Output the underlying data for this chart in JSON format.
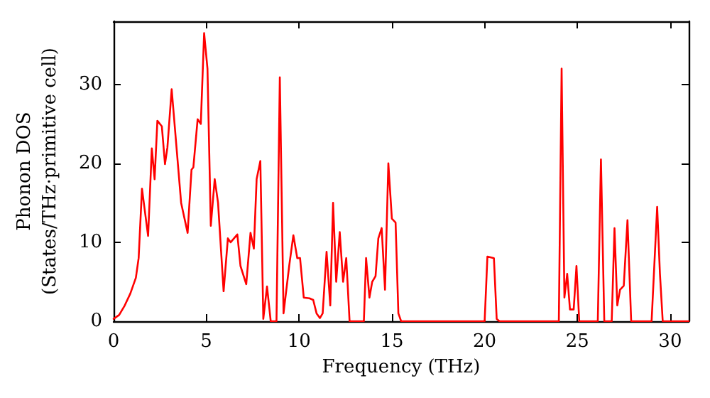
{
  "chart_data": {
    "type": "line",
    "xlabel": "Frequency (THz)",
    "ylabel": "Phonon DOS\n(States/THz·primitive cell)",
    "xlim": [
      0,
      31
    ],
    "ylim": [
      0,
      38
    ],
    "xticks": [
      0,
      5,
      10,
      15,
      20,
      25,
      30
    ],
    "yticks": [
      0,
      10,
      20,
      30
    ],
    "grid": false,
    "marker": "none",
    "line_style": "solid",
    "series": [
      {
        "color": "#ff0000",
        "x": [
          0,
          0.3,
          0.6,
          0.9,
          1.2,
          1.35,
          1.53,
          1.86,
          2.06,
          2.21,
          2.36,
          2.6,
          2.77,
          2.9,
          3.13,
          3.64,
          3.99,
          4.2,
          4.3,
          4.53,
          4.7,
          4.88,
          5.06,
          5.24,
          5.45,
          5.63,
          5.93,
          6.16,
          6.31,
          6.67,
          6.84,
          7.15,
          7.38,
          7.56,
          7.71,
          7.91,
          8.07,
          8.27,
          8.47,
          8.78,
          8.96,
          9.16,
          9.47,
          9.69,
          9.9,
          10.05,
          10.25,
          10.56,
          10.76,
          10.94,
          11.12,
          11.27,
          11.48,
          11.68,
          11.83,
          12.0,
          12.19,
          12.37,
          12.54,
          12.72,
          13.49,
          13.61,
          13.79,
          13.94,
          14.12,
          14.27,
          14.45,
          14.63,
          14.81,
          15.0,
          15.2,
          15.35,
          15.5,
          20.0,
          20.15,
          20.5,
          20.65,
          20.8,
          24.0,
          24.15,
          24.3,
          24.45,
          24.6,
          24.8,
          24.95,
          25.1,
          26.1,
          26.27,
          26.45,
          26.85,
          27.0,
          27.15,
          27.3,
          27.5,
          27.7,
          27.9,
          29.0,
          29.3,
          29.45,
          29.6,
          31
        ],
        "values": [
          0.3,
          0.8,
          2,
          3.5,
          5.5,
          8,
          16.8,
          10.8,
          21.9,
          18,
          25.4,
          24.7,
          19.9,
          22,
          29.4,
          15,
          11.2,
          19.2,
          19.5,
          25.6,
          25,
          36.5,
          32,
          12.1,
          18,
          15,
          3.8,
          10.5,
          10,
          11,
          7,
          4.7,
          11.2,
          9.2,
          18,
          20.3,
          0.3,
          4.4,
          0,
          0,
          30.9,
          1,
          7.1,
          10.9,
          8,
          8,
          3,
          2.9,
          2.7,
          1,
          0.4,
          1,
          8.8,
          2,
          15,
          5,
          11.3,
          5,
          8,
          0,
          0,
          8,
          3,
          5,
          5.7,
          10.5,
          11.8,
          4,
          20,
          13,
          12.5,
          1,
          0,
          0,
          8.2,
          8,
          0.3,
          0,
          0,
          32,
          3,
          6,
          1.5,
          1.5,
          7,
          0,
          0,
          20.5,
          0,
          0,
          11.8,
          2,
          4,
          4.5,
          12.8,
          0,
          0,
          14.5,
          6,
          0,
          0
        ]
      }
    ]
  }
}
